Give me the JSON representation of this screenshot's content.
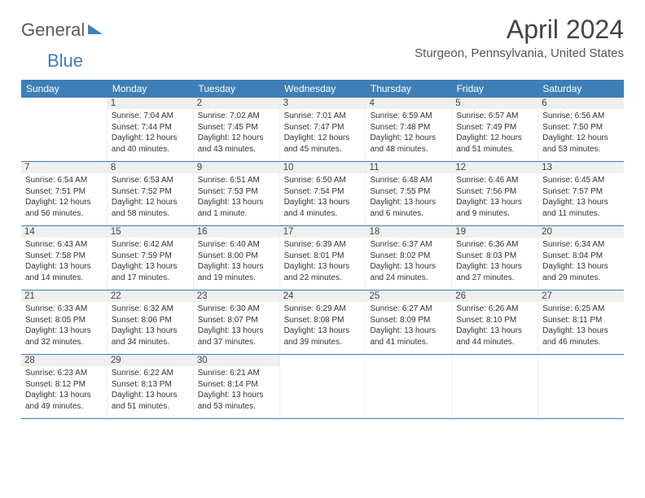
{
  "logo": {
    "part1": "General",
    "part2": "Blue"
  },
  "title": "April 2024",
  "location": "Sturgeon, Pennsylvania, United States",
  "colors": {
    "header_bg": "#3e7fb8",
    "header_text": "#ffffff",
    "daynum_bg": "#efefef",
    "border": "#3e7fb8",
    "body_text": "#333333"
  },
  "typography": {
    "title_size": 32,
    "location_size": 15,
    "dayhead_size": 12,
    "daynum_size": 11.5,
    "info_size": 10
  },
  "dayHeaders": [
    "Sunday",
    "Monday",
    "Tuesday",
    "Wednesday",
    "Thursday",
    "Friday",
    "Saturday"
  ],
  "weeks": [
    [
      {
        "num": "",
        "sunrise": "",
        "sunset": "",
        "daylight": ""
      },
      {
        "num": "1",
        "sunrise": "Sunrise: 7:04 AM",
        "sunset": "Sunset: 7:44 PM",
        "daylight": "Daylight: 12 hours and 40 minutes."
      },
      {
        "num": "2",
        "sunrise": "Sunrise: 7:02 AM",
        "sunset": "Sunset: 7:45 PM",
        "daylight": "Daylight: 12 hours and 43 minutes."
      },
      {
        "num": "3",
        "sunrise": "Sunrise: 7:01 AM",
        "sunset": "Sunset: 7:47 PM",
        "daylight": "Daylight: 12 hours and 45 minutes."
      },
      {
        "num": "4",
        "sunrise": "Sunrise: 6:59 AM",
        "sunset": "Sunset: 7:48 PM",
        "daylight": "Daylight: 12 hours and 48 minutes."
      },
      {
        "num": "5",
        "sunrise": "Sunrise: 6:57 AM",
        "sunset": "Sunset: 7:49 PM",
        "daylight": "Daylight: 12 hours and 51 minutes."
      },
      {
        "num": "6",
        "sunrise": "Sunrise: 6:56 AM",
        "sunset": "Sunset: 7:50 PM",
        "daylight": "Daylight: 12 hours and 53 minutes."
      }
    ],
    [
      {
        "num": "7",
        "sunrise": "Sunrise: 6:54 AM",
        "sunset": "Sunset: 7:51 PM",
        "daylight": "Daylight: 12 hours and 56 minutes."
      },
      {
        "num": "8",
        "sunrise": "Sunrise: 6:53 AM",
        "sunset": "Sunset: 7:52 PM",
        "daylight": "Daylight: 12 hours and 58 minutes."
      },
      {
        "num": "9",
        "sunrise": "Sunrise: 6:51 AM",
        "sunset": "Sunset: 7:53 PM",
        "daylight": "Daylight: 13 hours and 1 minute."
      },
      {
        "num": "10",
        "sunrise": "Sunrise: 6:50 AM",
        "sunset": "Sunset: 7:54 PM",
        "daylight": "Daylight: 13 hours and 4 minutes."
      },
      {
        "num": "11",
        "sunrise": "Sunrise: 6:48 AM",
        "sunset": "Sunset: 7:55 PM",
        "daylight": "Daylight: 13 hours and 6 minutes."
      },
      {
        "num": "12",
        "sunrise": "Sunrise: 6:46 AM",
        "sunset": "Sunset: 7:56 PM",
        "daylight": "Daylight: 13 hours and 9 minutes."
      },
      {
        "num": "13",
        "sunrise": "Sunrise: 6:45 AM",
        "sunset": "Sunset: 7:57 PM",
        "daylight": "Daylight: 13 hours and 11 minutes."
      }
    ],
    [
      {
        "num": "14",
        "sunrise": "Sunrise: 6:43 AM",
        "sunset": "Sunset: 7:58 PM",
        "daylight": "Daylight: 13 hours and 14 minutes."
      },
      {
        "num": "15",
        "sunrise": "Sunrise: 6:42 AM",
        "sunset": "Sunset: 7:59 PM",
        "daylight": "Daylight: 13 hours and 17 minutes."
      },
      {
        "num": "16",
        "sunrise": "Sunrise: 6:40 AM",
        "sunset": "Sunset: 8:00 PM",
        "daylight": "Daylight: 13 hours and 19 minutes."
      },
      {
        "num": "17",
        "sunrise": "Sunrise: 6:39 AM",
        "sunset": "Sunset: 8:01 PM",
        "daylight": "Daylight: 13 hours and 22 minutes."
      },
      {
        "num": "18",
        "sunrise": "Sunrise: 6:37 AM",
        "sunset": "Sunset: 8:02 PM",
        "daylight": "Daylight: 13 hours and 24 minutes."
      },
      {
        "num": "19",
        "sunrise": "Sunrise: 6:36 AM",
        "sunset": "Sunset: 8:03 PM",
        "daylight": "Daylight: 13 hours and 27 minutes."
      },
      {
        "num": "20",
        "sunrise": "Sunrise: 6:34 AM",
        "sunset": "Sunset: 8:04 PM",
        "daylight": "Daylight: 13 hours and 29 minutes."
      }
    ],
    [
      {
        "num": "21",
        "sunrise": "Sunrise: 6:33 AM",
        "sunset": "Sunset: 8:05 PM",
        "daylight": "Daylight: 13 hours and 32 minutes."
      },
      {
        "num": "22",
        "sunrise": "Sunrise: 6:32 AM",
        "sunset": "Sunset: 8:06 PM",
        "daylight": "Daylight: 13 hours and 34 minutes."
      },
      {
        "num": "23",
        "sunrise": "Sunrise: 6:30 AM",
        "sunset": "Sunset: 8:07 PM",
        "daylight": "Daylight: 13 hours and 37 minutes."
      },
      {
        "num": "24",
        "sunrise": "Sunrise: 6:29 AM",
        "sunset": "Sunset: 8:08 PM",
        "daylight": "Daylight: 13 hours and 39 minutes."
      },
      {
        "num": "25",
        "sunrise": "Sunrise: 6:27 AM",
        "sunset": "Sunset: 8:09 PM",
        "daylight": "Daylight: 13 hours and 41 minutes."
      },
      {
        "num": "26",
        "sunrise": "Sunrise: 6:26 AM",
        "sunset": "Sunset: 8:10 PM",
        "daylight": "Daylight: 13 hours and 44 minutes."
      },
      {
        "num": "27",
        "sunrise": "Sunrise: 6:25 AM",
        "sunset": "Sunset: 8:11 PM",
        "daylight": "Daylight: 13 hours and 46 minutes."
      }
    ],
    [
      {
        "num": "28",
        "sunrise": "Sunrise: 6:23 AM",
        "sunset": "Sunset: 8:12 PM",
        "daylight": "Daylight: 13 hours and 49 minutes."
      },
      {
        "num": "29",
        "sunrise": "Sunrise: 6:22 AM",
        "sunset": "Sunset: 8:13 PM",
        "daylight": "Daylight: 13 hours and 51 minutes."
      },
      {
        "num": "30",
        "sunrise": "Sunrise: 6:21 AM",
        "sunset": "Sunset: 8:14 PM",
        "daylight": "Daylight: 13 hours and 53 minutes."
      },
      {
        "num": "",
        "sunrise": "",
        "sunset": "",
        "daylight": ""
      },
      {
        "num": "",
        "sunrise": "",
        "sunset": "",
        "daylight": ""
      },
      {
        "num": "",
        "sunrise": "",
        "sunset": "",
        "daylight": ""
      },
      {
        "num": "",
        "sunrise": "",
        "sunset": "",
        "daylight": ""
      }
    ]
  ]
}
